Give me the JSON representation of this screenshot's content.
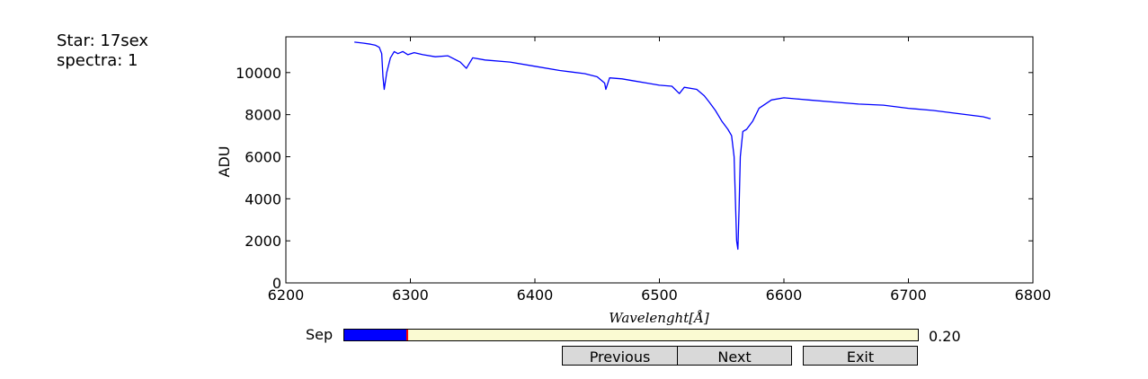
{
  "info": {
    "star": "Star: 17sex",
    "spectra": "spectra: 1"
  },
  "colors": {
    "line": "#0000ff",
    "slider_fill": "#0000ff",
    "slider_track": "#fafad2",
    "slider_handle": "#ff0000",
    "button_bg": "#d9d9d9"
  },
  "chart_data": {
    "type": "line",
    "title": "",
    "xlabel": "Wavelenght[Å]",
    "ylabel": "ADU",
    "xlim": [
      6200,
      6800
    ],
    "ylim": [
      0,
      11700
    ],
    "xticks": [
      "6200",
      "6300",
      "6400",
      "6500",
      "6600",
      "6700",
      "6800"
    ],
    "yticks": [
      "0",
      "2000",
      "4000",
      "6000",
      "8000",
      "10000"
    ],
    "grid": false,
    "series": [
      {
        "x": [
          6255,
          6262,
          6268,
          6272,
          6275,
          6277,
          6278,
          6279,
          6281,
          6284,
          6287,
          6290,
          6294,
          6298,
          6303,
          6310,
          6320,
          6330,
          6340,
          6345,
          6348,
          6350,
          6360,
          6380,
          6400,
          6420,
          6440,
          6450,
          6456,
          6457,
          6460,
          6470,
          6480,
          6490,
          6500,
          6510,
          6516,
          6520,
          6530,
          6536,
          6540,
          6545,
          6550,
          6555,
          6558,
          6560,
          6561,
          6562,
          6563,
          6564,
          6565,
          6567,
          6570,
          6575,
          6580,
          6590,
          6600,
          6610,
          6620,
          6640,
          6660,
          6680,
          6700,
          6720,
          6740,
          6760,
          6766
        ],
        "y": [
          11450,
          11400,
          11350,
          11300,
          11200,
          10900,
          9800,
          9200,
          10000,
          10700,
          11000,
          10900,
          11000,
          10850,
          10950,
          10850,
          10750,
          10800,
          10500,
          10200,
          10500,
          10700,
          10600,
          10500,
          10300,
          10100,
          9950,
          9800,
          9500,
          9200,
          9750,
          9700,
          9600,
          9500,
          9400,
          9350,
          9000,
          9300,
          9200,
          8900,
          8600,
          8200,
          7700,
          7300,
          7000,
          6000,
          4000,
          2000,
          1600,
          3500,
          6000,
          7200,
          7300,
          7700,
          8300,
          8700,
          8800,
          8750,
          8700,
          8600,
          8500,
          8450,
          8300,
          8200,
          8050,
          7900,
          7800
        ]
      }
    ]
  },
  "controls": {
    "slider_label": "Sep",
    "slider_value": "0.20",
    "slider_fraction": 0.11,
    "previous_label": "Previous",
    "next_label": "Next",
    "exit_label": "Exit"
  }
}
